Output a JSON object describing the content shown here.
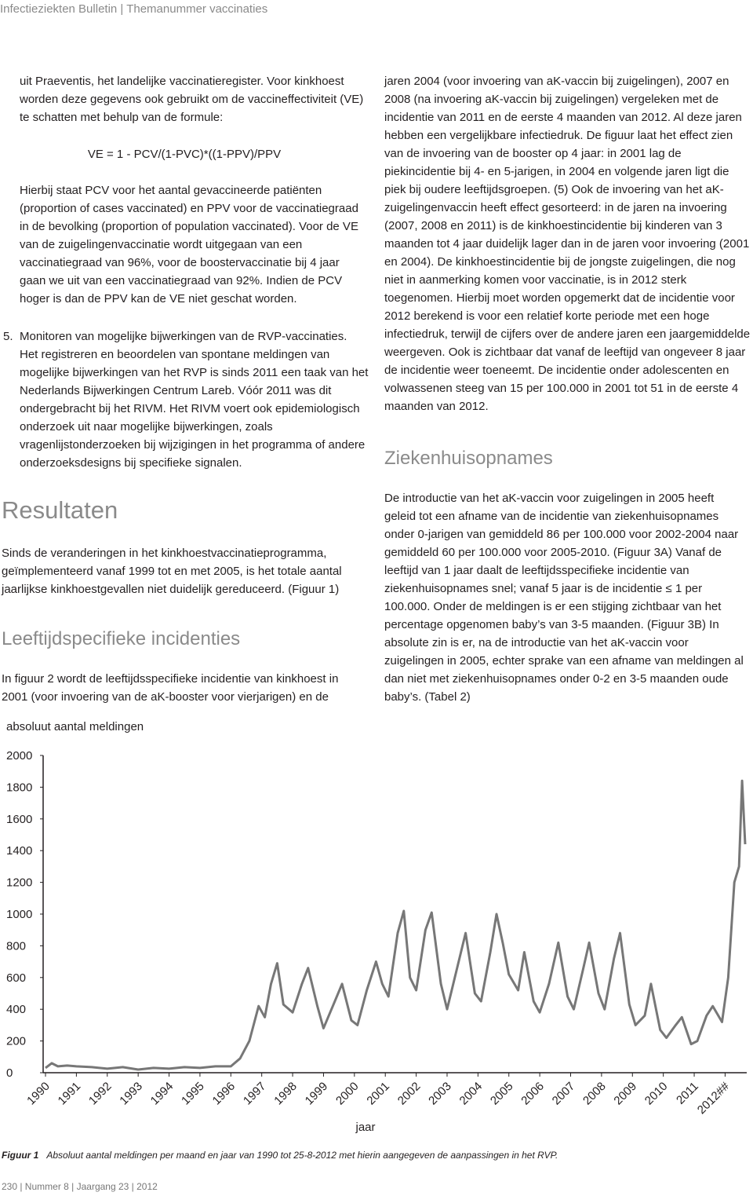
{
  "header": {
    "text": "Infectieziekten Bulletin  |  Themanummer vaccinaties"
  },
  "left": {
    "p1": "uit Praeventis, het landelijke vaccinatieregister. Voor kinkhoest worden deze gegevens ook gebruikt om de vaccineffectiviteit (VE) te schatten met behulp van de formule:",
    "formula": "VE = 1 - PCV/(1-PVC)*((1-PPV)/PPV",
    "p2": "Hierbij staat PCV voor het aantal gevaccineerde patiënten (proportion of cases vaccinated) en PPV voor de vaccinatiegraad in de bevolking (proportion of population vaccinated). Voor de VE van de zuigelingenvaccinatie wordt uitgegaan van een vaccinatiegraad van 96%, voor de boostervaccinatie bij 4 jaar gaan we uit van een vaccinatiegraad van 92%. Indien de PCV hoger is dan de PPV kan de VE niet geschat worden.",
    "item_number": "5.",
    "item_title": "Monitoren van mogelijke bijwerkingen van de RVP-vaccinaties.",
    "p3": "Het registreren en beoordelen van spontane meldingen van mogelijke bijwerkingen van het RVP is sinds 2011 een taak van het Nederlands Bijwerkingen Centrum Lareb. Vóór 2011 was dit ondergebracht bij het RIVM. Het RIVM voert ook epidemiologisch onderzoek uit naar mogelijke bijwerkingen, zoals vragenlijstonderzoeken bij wijzigingen in het programma of andere onderzoeksdesigns bij specifieke signalen.",
    "heading_results": "Resultaten",
    "p4": "Sinds de veranderingen in het kinkhoestvaccinatieprogramma, geïmplementeerd vanaf 1999 tot en met 2005, is het totale aantal jaarlijkse kinkhoestgevallen niet duidelijk gereduceerd. (Figuur 1)",
    "heading_age": "Leeftijdspecifieke incidenties",
    "p5": "In figuur 2 wordt de leeftijdsspecifieke incidentie van kinkhoest in 2001 (voor invoering van de aK-booster voor vierjarigen) en de"
  },
  "right": {
    "p1": "jaren 2004 (voor invoering van aK-vaccin bij zuigelingen), 2007 en 2008 (na invoering aK-vaccin bij zuigelingen) vergeleken met de incidentie van 2011 en de eerste 4 maanden van 2012. Al deze jaren hebben een vergelijkbare infectiedruk. De figuur laat het effect zien van de invoering van de booster op 4 jaar: in 2001 lag de piekincidentie bij 4- en 5-jarigen, in 2004 en volgende jaren ligt die piek bij oudere leeftijdsgroepen. (5) Ook de invoering van het aK-zuigelingenvaccin heeft effect gesorteerd: in de jaren na invoering (2007, 2008 en 2011) is de kinkhoestincidentie bij kinderen van 3 maanden tot 4 jaar duidelijk lager dan in de jaren voor invoering (2001 en 2004). De kinkhoestincidentie bij de jongste zuigelingen, die nog niet in aanmerking komen voor vaccinatie, is in 2012 sterk toegenomen. Hierbij moet worden opgemerkt dat de incidentie voor 2012 berekend is voor een relatief korte periode met een hoge infectiedruk, terwijl de cijfers over de andere jaren een jaargemiddelde weergeven. Ook is zichtbaar dat vanaf de leeftijd van ongeveer 8 jaar de incidentie weer toeneemt. De incidentie onder adolescenten en volwassenen steeg van 15 per 100.000 in 2001 tot 51 in de eerste 4 maanden van 2012.",
    "heading_hosp": "Ziekenhuisopnames",
    "p2": "De introductie van het aK-vaccin voor zuigelingen in 2005 heeft geleid tot een afname van de incidentie van ziekenhuisopnames onder 0-jarigen van gemiddeld 86 per 100.000 voor 2002-2004 naar gemiddeld 60 per 100.000 voor 2005-2010. (Figuur 3A) Vanaf de leeftijd van 1 jaar daalt de leeftijdsspecifieke incidentie van ziekenhuisopnames snel; vanaf 5 jaar is de incidentie ≤ 1 per 100.000. Onder de meldingen is er een stijging zichtbaar van het percentage opgenomen baby’s van 3-5 maanden. (Figuur 3B) In absolute zin is er, na de introductie van het aK-vaccin voor zuigelingen in 2005, echter sprake van een afname van meldingen al dan niet met ziekenhuisopnames onder 0-2 en 3-5 maanden oude baby’s. (Tabel 2)"
  },
  "chart_data": {
    "type": "line",
    "y_label": "absoluut aantal meldingen",
    "x_label": "jaar",
    "color": "#777777",
    "x": [
      1990.0,
      1990.2,
      1990.4,
      1990.7,
      1991.0,
      1991.5,
      1992.0,
      1992.5,
      1993.0,
      1993.5,
      1994.0,
      1994.5,
      1995.0,
      1995.5,
      1996.0,
      1996.3,
      1996.6,
      1996.9,
      1997.1,
      1997.3,
      1997.5,
      1997.7,
      1998.0,
      1998.3,
      1998.5,
      1998.8,
      1999.0,
      1999.3,
      1999.6,
      1999.9,
      2000.1,
      2000.4,
      2000.7,
      2000.9,
      2001.1,
      2001.4,
      2001.6,
      2001.8,
      2002.0,
      2002.3,
      2002.5,
      2002.8,
      2003.0,
      2003.3,
      2003.6,
      2003.9,
      2004.1,
      2004.4,
      2004.6,
      2004.8,
      2005.0,
      2005.3,
      2005.5,
      2005.8,
      2006.0,
      2006.3,
      2006.6,
      2006.9,
      2007.1,
      2007.4,
      2007.6,
      2007.9,
      2008.1,
      2008.4,
      2008.6,
      2008.9,
      2009.1,
      2009.4,
      2009.6,
      2009.9,
      2010.1,
      2010.4,
      2010.6,
      2010.9,
      2011.1,
      2011.4,
      2011.6,
      2011.9,
      2012.1,
      2012.3,
      2012.45,
      2012.55,
      2012.65
    ],
    "y": [
      30,
      60,
      40,
      45,
      40,
      35,
      25,
      35,
      20,
      30,
      25,
      35,
      30,
      40,
      40,
      90,
      200,
      420,
      350,
      560,
      690,
      430,
      380,
      560,
      660,
      420,
      280,
      420,
      560,
      330,
      300,
      520,
      700,
      560,
      480,
      880,
      1020,
      600,
      520,
      900,
      1010,
      560,
      400,
      640,
      880,
      500,
      450,
      760,
      1000,
      820,
      620,
      520,
      760,
      450,
      380,
      560,
      820,
      480,
      400,
      650,
      820,
      500,
      400,
      720,
      880,
      430,
      300,
      360,
      560,
      270,
      220,
      300,
      350,
      180,
      200,
      360,
      420,
      320,
      600,
      1200,
      1300,
      1840,
      1440
    ],
    "xlim": [
      1990,
      2012.7
    ],
    "ylim": [
      0,
      2000
    ],
    "xticks": [
      1990,
      1991,
      1992,
      1993,
      1994,
      1995,
      1996,
      1997,
      1998,
      1999,
      2000,
      2001,
      2002,
      2003,
      2004,
      2005,
      2006,
      2007,
      2008,
      2009,
      2010,
      2011,
      {
        "value": 2012,
        "label": "2012##"
      }
    ],
    "yticks": [
      0,
      200,
      400,
      600,
      800,
      1000,
      1200,
      1400,
      1600,
      1800,
      2000
    ]
  },
  "caption": {
    "label": "Figuur 1",
    "text": "Absoluut aantal meldingen per maand en jaar van 1990 tot 25-8-2012 met hierin aangegeven de aanpassingen in het RVP."
  },
  "footer": {
    "text": "230  |  Nummer 8  |  Jaargang 23  |  2012"
  }
}
